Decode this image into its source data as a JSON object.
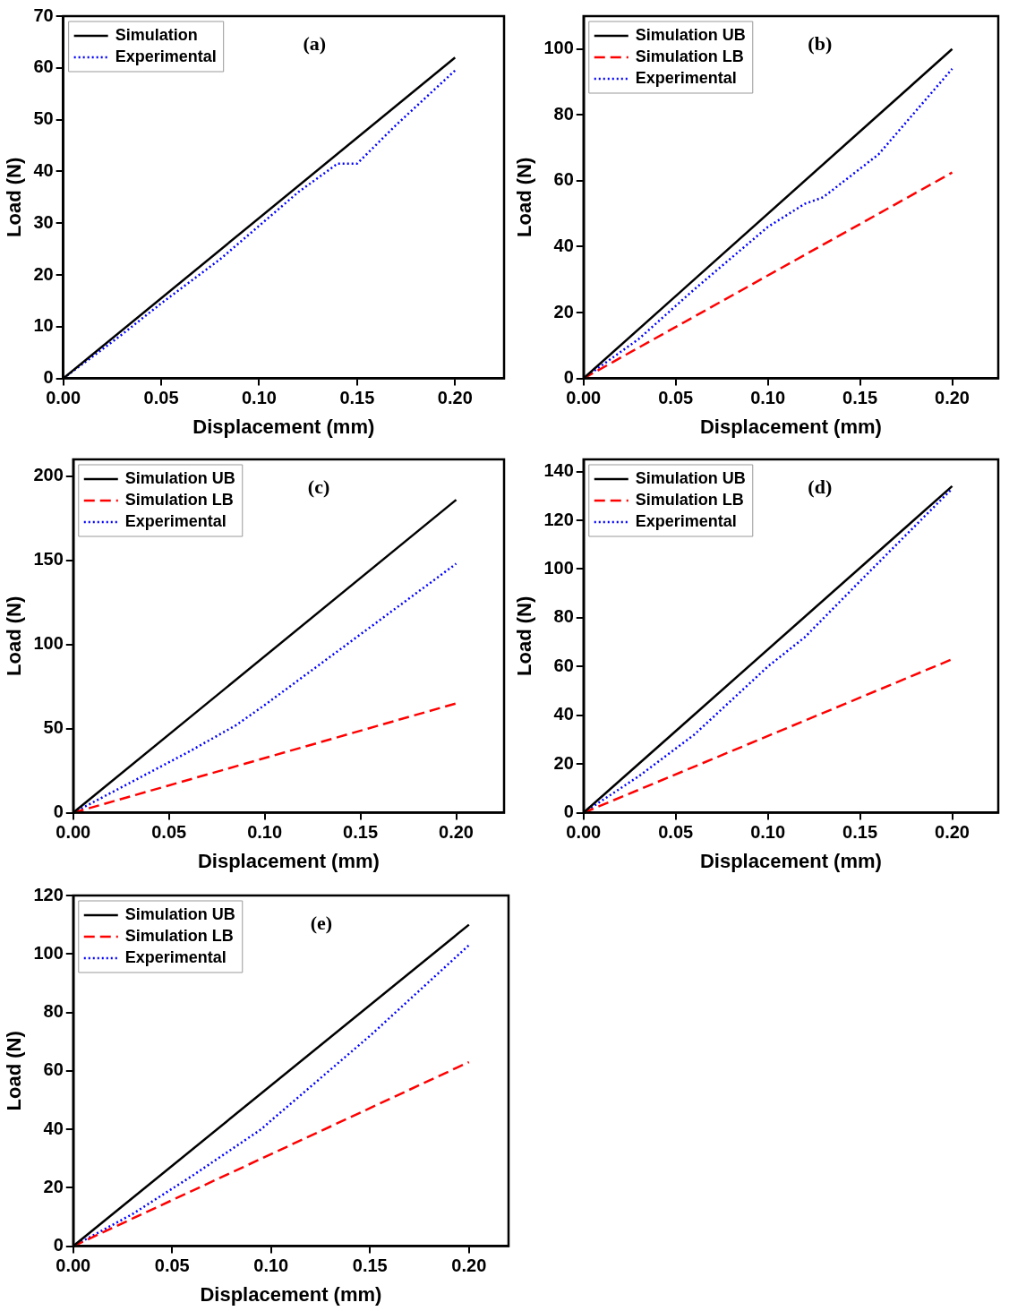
{
  "chart_data": [
    {
      "type": "line",
      "xlabel": "Displacement (mm)",
      "ylabel": "Load (N)",
      "annotations": [
        "(a)"
      ],
      "legend": "top left",
      "grid": false,
      "marker": "none",
      "xlim": [
        0,
        0.225
      ],
      "ylim": [
        0,
        70
      ],
      "xticks": [
        {
          "value": 0,
          "label": "0.00"
        },
        {
          "value": 0.05,
          "label": "0.05"
        },
        {
          "value": 0.1,
          "label": "0.10"
        },
        {
          "value": 0.15,
          "label": "0.15"
        },
        {
          "value": 0.2,
          "label": "0.20"
        }
      ],
      "yticks": [
        0,
        10,
        20,
        30,
        40,
        50,
        60,
        70
      ],
      "series": [
        {
          "name": "Simulation",
          "color": "#000000",
          "line_style": "solid",
          "x": [
            0,
            0.2
          ],
          "values": [
            0,
            62
          ]
        },
        {
          "name": "Experimental",
          "color": "#0000ff",
          "line_style": "dotted",
          "x": [
            0,
            0.03,
            0.05,
            0.08,
            0.1,
            0.12,
            0.14,
            0.15,
            0.17,
            0.2
          ],
          "values": [
            0,
            8.5,
            14.5,
            23,
            29.5,
            36,
            41.5,
            41.5,
            49,
            59.5
          ]
        }
      ]
    },
    {
      "type": "line",
      "xlabel": "Displacement (mm)",
      "ylabel": "Load (N)",
      "annotations": [
        "(b)"
      ],
      "legend": "top left",
      "grid": false,
      "marker": "none",
      "xlim": [
        0,
        0.225
      ],
      "ylim": [
        0,
        110
      ],
      "xticks": [
        {
          "value": 0,
          "label": "0.00"
        },
        {
          "value": 0.05,
          "label": "0.05"
        },
        {
          "value": 0.1,
          "label": "0.10"
        },
        {
          "value": 0.15,
          "label": "0.15"
        },
        {
          "value": 0.2,
          "label": "0.20"
        }
      ],
      "yticks": [
        0,
        20,
        40,
        60,
        80,
        100
      ],
      "series": [
        {
          "name": "Simulation UB",
          "color": "#000000",
          "line_style": "solid",
          "x": [
            0,
            0.2
          ],
          "values": [
            0,
            100
          ]
        },
        {
          "name": "Simulation LB",
          "color": "#ff0000",
          "line_style": "dashed",
          "x": [
            0,
            0.2
          ],
          "values": [
            0,
            62.5
          ]
        },
        {
          "name": "Experimental",
          "color": "#0000ff",
          "line_style": "dotted",
          "x": [
            0,
            0.03,
            0.06,
            0.1,
            0.12,
            0.13,
            0.16,
            0.2
          ],
          "values": [
            0,
            12,
            27,
            46,
            53,
            55,
            68,
            94
          ]
        }
      ]
    },
    {
      "type": "line",
      "xlabel": "Displacement (mm)",
      "ylabel": "Load (N)",
      "annotations": [
        "(c)"
      ],
      "legend": "top left",
      "grid": false,
      "marker": "none",
      "xlim": [
        0,
        0.225
      ],
      "ylim": [
        0,
        210
      ],
      "xticks": [
        {
          "value": 0,
          "label": "0.00"
        },
        {
          "value": 0.05,
          "label": "0.05"
        },
        {
          "value": 0.1,
          "label": "0.10"
        },
        {
          "value": 0.15,
          "label": "0.15"
        },
        {
          "value": 0.2,
          "label": "0.20"
        }
      ],
      "yticks": [
        0,
        50,
        100,
        150,
        200
      ],
      "series": [
        {
          "name": "Simulation UB",
          "color": "#000000",
          "line_style": "solid",
          "x": [
            0,
            0.2
          ],
          "values": [
            0,
            186
          ]
        },
        {
          "name": "Simulation LB",
          "color": "#ff0000",
          "line_style": "dashed",
          "x": [
            0,
            0.2
          ],
          "values": [
            0,
            65
          ]
        },
        {
          "name": "Experimental",
          "color": "#0000ff",
          "line_style": "dotted",
          "x": [
            0,
            0.03,
            0.06,
            0.085,
            0.1,
            0.15,
            0.2
          ],
          "values": [
            0,
            18,
            36,
            52,
            64,
            106,
            148
          ]
        }
      ]
    },
    {
      "type": "line",
      "xlabel": "Displacement (mm)",
      "ylabel": "Load (N)",
      "annotations": [
        "(d)"
      ],
      "legend": "top left",
      "grid": false,
      "marker": "none",
      "xlim": [
        0,
        0.225
      ],
      "ylim": [
        0,
        145
      ],
      "xticks": [
        {
          "value": 0,
          "label": "0.00"
        },
        {
          "value": 0.05,
          "label": "0.05"
        },
        {
          "value": 0.1,
          "label": "0.10"
        },
        {
          "value": 0.15,
          "label": "0.15"
        },
        {
          "value": 0.2,
          "label": "0.20"
        }
      ],
      "yticks": [
        0,
        20,
        40,
        60,
        80,
        100,
        120,
        140
      ],
      "series": [
        {
          "name": "Simulation UB",
          "color": "#000000",
          "line_style": "solid",
          "x": [
            0,
            0.2
          ],
          "values": [
            0,
            134
          ]
        },
        {
          "name": "Simulation LB",
          "color": "#ff0000",
          "line_style": "dashed",
          "x": [
            0,
            0.2
          ],
          "values": [
            0,
            63
          ]
        },
        {
          "name": "Experimental",
          "color": "#0000ff",
          "line_style": "dotted",
          "x": [
            0,
            0.03,
            0.06,
            0.1,
            0.12,
            0.15,
            0.2
          ],
          "values": [
            0,
            15,
            32,
            60,
            72,
            95,
            133
          ]
        }
      ]
    },
    {
      "type": "line",
      "xlabel": "Displacement (mm)",
      "ylabel": "Load (N)",
      "annotations": [
        "(e)"
      ],
      "legend": "top left",
      "grid": false,
      "marker": "none",
      "xlim": [
        0,
        0.22
      ],
      "ylim": [
        0,
        120
      ],
      "xticks": [
        {
          "value": 0,
          "label": "0.00"
        },
        {
          "value": 0.05,
          "label": "0.05"
        },
        {
          "value": 0.1,
          "label": "0.10"
        },
        {
          "value": 0.15,
          "label": "0.15"
        },
        {
          "value": 0.2,
          "label": "0.20"
        }
      ],
      "yticks": [
        0,
        20,
        40,
        60,
        80,
        100,
        120
      ],
      "series": [
        {
          "name": "Simulation UB",
          "color": "#000000",
          "line_style": "solid",
          "x": [
            0,
            0.2
          ],
          "values": [
            0,
            110
          ]
        },
        {
          "name": "Simulation LB",
          "color": "#ff0000",
          "line_style": "dashed",
          "x": [
            0,
            0.2
          ],
          "values": [
            0,
            63
          ]
        },
        {
          "name": "Experimental",
          "color": "#0000ff",
          "line_style": "dotted",
          "x": [
            0,
            0.03,
            0.06,
            0.095,
            0.1,
            0.15,
            0.2
          ],
          "values": [
            0,
            11,
            24,
            40,
            43,
            72,
            103
          ]
        }
      ]
    }
  ]
}
